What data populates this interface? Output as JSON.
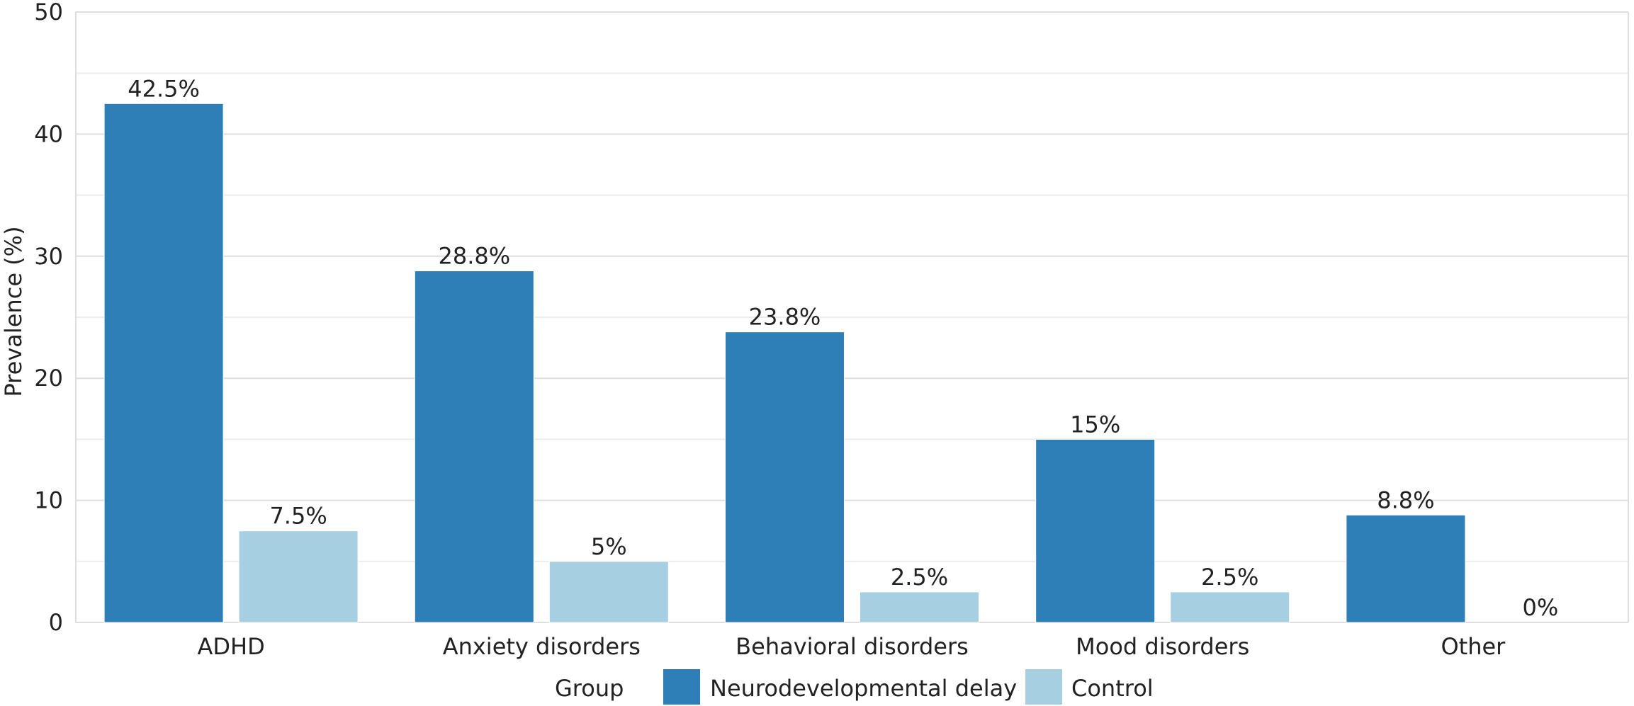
{
  "chart_data": {
    "type": "bar",
    "title": "",
    "xlabel": "",
    "ylabel": "Prevalence (%)",
    "ylim": [
      0,
      50
    ],
    "yticks": [
      0,
      10,
      20,
      30,
      40,
      50
    ],
    "grid": true,
    "legend_position": "bottom",
    "legend_title": "Group",
    "categories": [
      "ADHD",
      "Anxiety disorders",
      "Behavioral disorders",
      "Mood disorders",
      "Other"
    ],
    "series": [
      {
        "name": "Neurodevelopmental delay",
        "color": "#2e7eb8",
        "values": [
          42.5,
          28.8,
          23.8,
          15,
          8.8
        ],
        "labels": [
          "42.5%",
          "28.8%",
          "23.8%",
          "15%",
          "8.8%"
        ]
      },
      {
        "name": "Control",
        "color": "#a7cfe2",
        "values": [
          7.5,
          5,
          2.5,
          2.5,
          0
        ],
        "labels": [
          "7.5%",
          "5%",
          "2.5%",
          "2.5%",
          "0%"
        ]
      }
    ]
  }
}
